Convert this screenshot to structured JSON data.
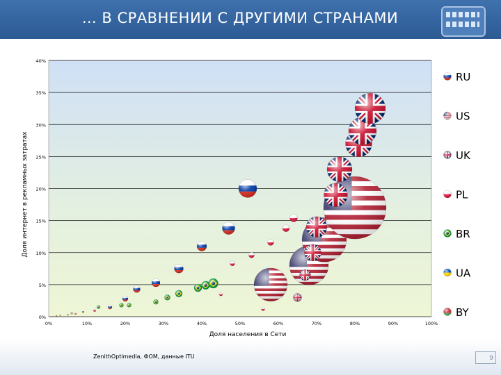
{
  "header": {
    "title": "… В СРАВНЕНИИ С ДРУГИМИ СТРАНАМИ"
  },
  "footer": {
    "source": "ZenithOptimedia, ФОМ, данные ITU",
    "page_number": "9"
  },
  "chart_data": {
    "type": "scatter",
    "title": "",
    "xlabel": "Доля населения в Сети",
    "ylabel": "Доля интернет в рекламных затратах",
    "xlim": [
      0,
      100
    ],
    "ylim": [
      0,
      40
    ],
    "x_ticks": [
      "0%",
      "10%",
      "20%",
      "30%",
      "40%",
      "50%",
      "60%",
      "70%",
      "80%",
      "90%",
      "100%"
    ],
    "y_ticks": [
      "0%",
      "5%",
      "10%",
      "15%",
      "20%",
      "25%",
      "30%",
      "35%",
      "40%"
    ],
    "grid": true,
    "legend_position": "right",
    "colors": {
      "RU": "#d52b1e",
      "US": "#b22234",
      "UK": "#c8102e",
      "PL": "#dc143c",
      "BR": "#009c3b",
      "UA": "#0057b7",
      "BY": "#c8313e"
    },
    "series": [
      {
        "name": "RU",
        "points": [
          [
            16,
            1.5,
            3
          ],
          [
            20,
            2.8,
            4
          ],
          [
            23,
            4.3,
            5
          ],
          [
            28,
            5.3,
            6
          ],
          [
            34,
            7.5,
            6.5
          ],
          [
            40,
            11,
            7
          ],
          [
            47,
            13.8,
            9
          ],
          [
            52,
            20,
            13
          ]
        ]
      },
      {
        "name": "US",
        "points": [
          [
            58,
            5,
            24
          ],
          [
            68,
            8,
            28
          ],
          [
            72,
            12,
            32
          ],
          [
            80,
            17,
            45
          ]
        ]
      },
      {
        "name": "UK",
        "points": [
          [
            65,
            3,
            6
          ],
          [
            67,
            6.5,
            8
          ],
          [
            69,
            10,
            12
          ],
          [
            70,
            14,
            15
          ],
          [
            75,
            19,
            17
          ],
          [
            76,
            23,
            18
          ],
          [
            81,
            27,
            19
          ],
          [
            82,
            29,
            20
          ],
          [
            84,
            32.5,
            22
          ]
        ]
      },
      {
        "name": "PL",
        "points": [
          [
            7,
            0.5,
            1.5
          ],
          [
            12,
            1,
            2
          ],
          [
            45,
            3.5,
            2.5
          ],
          [
            48,
            8.3,
            3.5
          ],
          [
            53,
            9.6,
            4
          ],
          [
            58,
            11.6,
            4.5
          ],
          [
            62,
            13.8,
            5
          ],
          [
            64,
            15.4,
            5.5
          ],
          [
            56,
            1.2,
            2.5
          ]
        ]
      },
      {
        "name": "BR",
        "points": [
          [
            13,
            1.5,
            2.5
          ],
          [
            19,
            1.8,
            3
          ],
          [
            21,
            1.8,
            3
          ],
          [
            28,
            2.3,
            3.5
          ],
          [
            31,
            3,
            4
          ],
          [
            34,
            3.6,
            5
          ],
          [
            39,
            4.5,
            5.5
          ],
          [
            41,
            4.9,
            6
          ],
          [
            43,
            5.2,
            7
          ]
        ]
      },
      {
        "name": "UA",
        "points": [
          [
            3,
            0.2,
            1
          ],
          [
            6,
            0.5,
            1.5
          ],
          [
            9,
            0.7,
            1.5
          ]
        ]
      },
      {
        "name": "BY",
        "points": [
          [
            2,
            0.1,
            1
          ],
          [
            5,
            0.3,
            1
          ]
        ]
      }
    ]
  }
}
